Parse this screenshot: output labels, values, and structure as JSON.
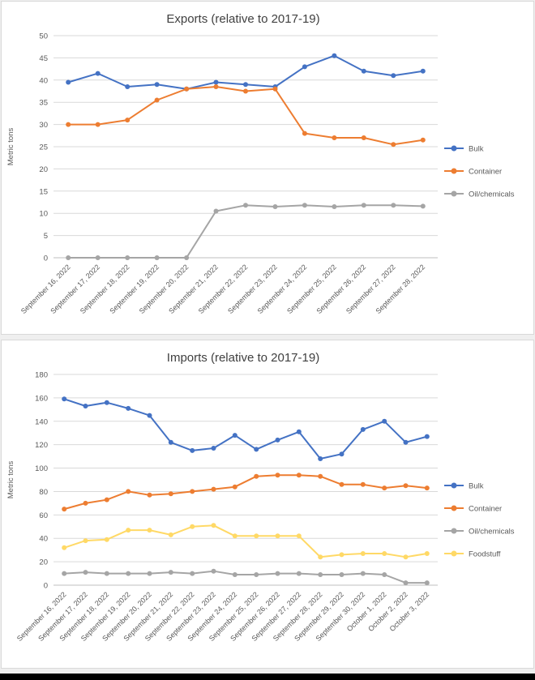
{
  "page": {
    "background_color": "#efefef",
    "panel_border_color": "#d9d9d9",
    "bottom_bar_color": "#000000",
    "grid_color": "#d9d9d9",
    "axis_color": "#bfbfbf",
    "tick_label_color": "#595959",
    "title_color": "#404040"
  },
  "chart_data": [
    {
      "id": "exports-chart",
      "type": "line",
      "title": "Exports (relative to 2017-19)",
      "xlabel": "",
      "ylabel": "Metric tons",
      "ylim": [
        0,
        50
      ],
      "ytick_step": 5,
      "grid": true,
      "legend_position": "right",
      "categories": [
        "September 16, 2022",
        "September 17, 2022",
        "September 18, 2022",
        "September 19, 2022",
        "September 20, 2022",
        "September 21, 2022",
        "September 22, 2022",
        "September 23, 2022",
        "September 24, 2022",
        "September 25, 2022",
        "September 26, 2022",
        "September 27, 2022",
        "September 28, 2022"
      ],
      "series": [
        {
          "name": "Bulk",
          "color": "#4472C4",
          "values": [
            39.5,
            41.5,
            38.5,
            39,
            38,
            39.5,
            39,
            38.5,
            43,
            45.5,
            42,
            41,
            42
          ]
        },
        {
          "name": "Container",
          "color": "#ED7D31",
          "values": [
            30,
            30,
            31,
            35.5,
            38,
            38.5,
            37.5,
            38,
            28,
            27,
            27,
            25.5,
            26.5
          ]
        },
        {
          "name": "Oil/chemicals",
          "color": "#A5A5A5",
          "values": [
            0,
            0,
            0,
            0,
            0,
            10.5,
            11.8,
            11.5,
            11.8,
            11.5,
            11.8,
            11.8,
            11.6
          ]
        }
      ]
    },
    {
      "id": "imports-chart",
      "type": "line",
      "title": "Imports (relative to 2017-19)",
      "xlabel": "",
      "ylabel": "Metric tons",
      "ylim": [
        0,
        180
      ],
      "ytick_step": 20,
      "grid": true,
      "legend_position": "right",
      "categories": [
        "September 16, 2022",
        "September 17, 2022",
        "September 18, 2022",
        "September 19, 2022",
        "September 20, 2022",
        "September 21, 2022",
        "September 22, 2022",
        "September 23, 2022",
        "September 24, 2022",
        "September 25, 2022",
        "September 26, 2022",
        "September 27, 2022",
        "September 28, 2022",
        "September 29, 2022",
        "September 30, 2022",
        "October 1, 2022",
        "October 2, 2022",
        "October 3, 2022"
      ],
      "series": [
        {
          "name": "Bulk",
          "color": "#4472C4",
          "values": [
            159,
            153,
            156,
            151,
            145,
            122,
            115,
            117,
            128,
            116,
            124,
            131,
            108,
            112,
            133,
            140,
            122,
            127
          ]
        },
        {
          "name": "Container",
          "color": "#ED7D31",
          "values": [
            65,
            70,
            73,
            80,
            77,
            78,
            80,
            82,
            84,
            93,
            94,
            94,
            93,
            86,
            86,
            83,
            85,
            83
          ]
        },
        {
          "name": "Oil/chemicals",
          "color": "#A5A5A5",
          "values": [
            10,
            11,
            10,
            10,
            10,
            11,
            10,
            12,
            9,
            9,
            10,
            10,
            9,
            9,
            10,
            9,
            2,
            2
          ]
        },
        {
          "name": "Foodstuff",
          "color": "#FFD966",
          "values": [
            32,
            38,
            39,
            47,
            47,
            43,
            50,
            51,
            42,
            42,
            42,
            42,
            24,
            26,
            27,
            27,
            24,
            27
          ]
        }
      ]
    }
  ]
}
